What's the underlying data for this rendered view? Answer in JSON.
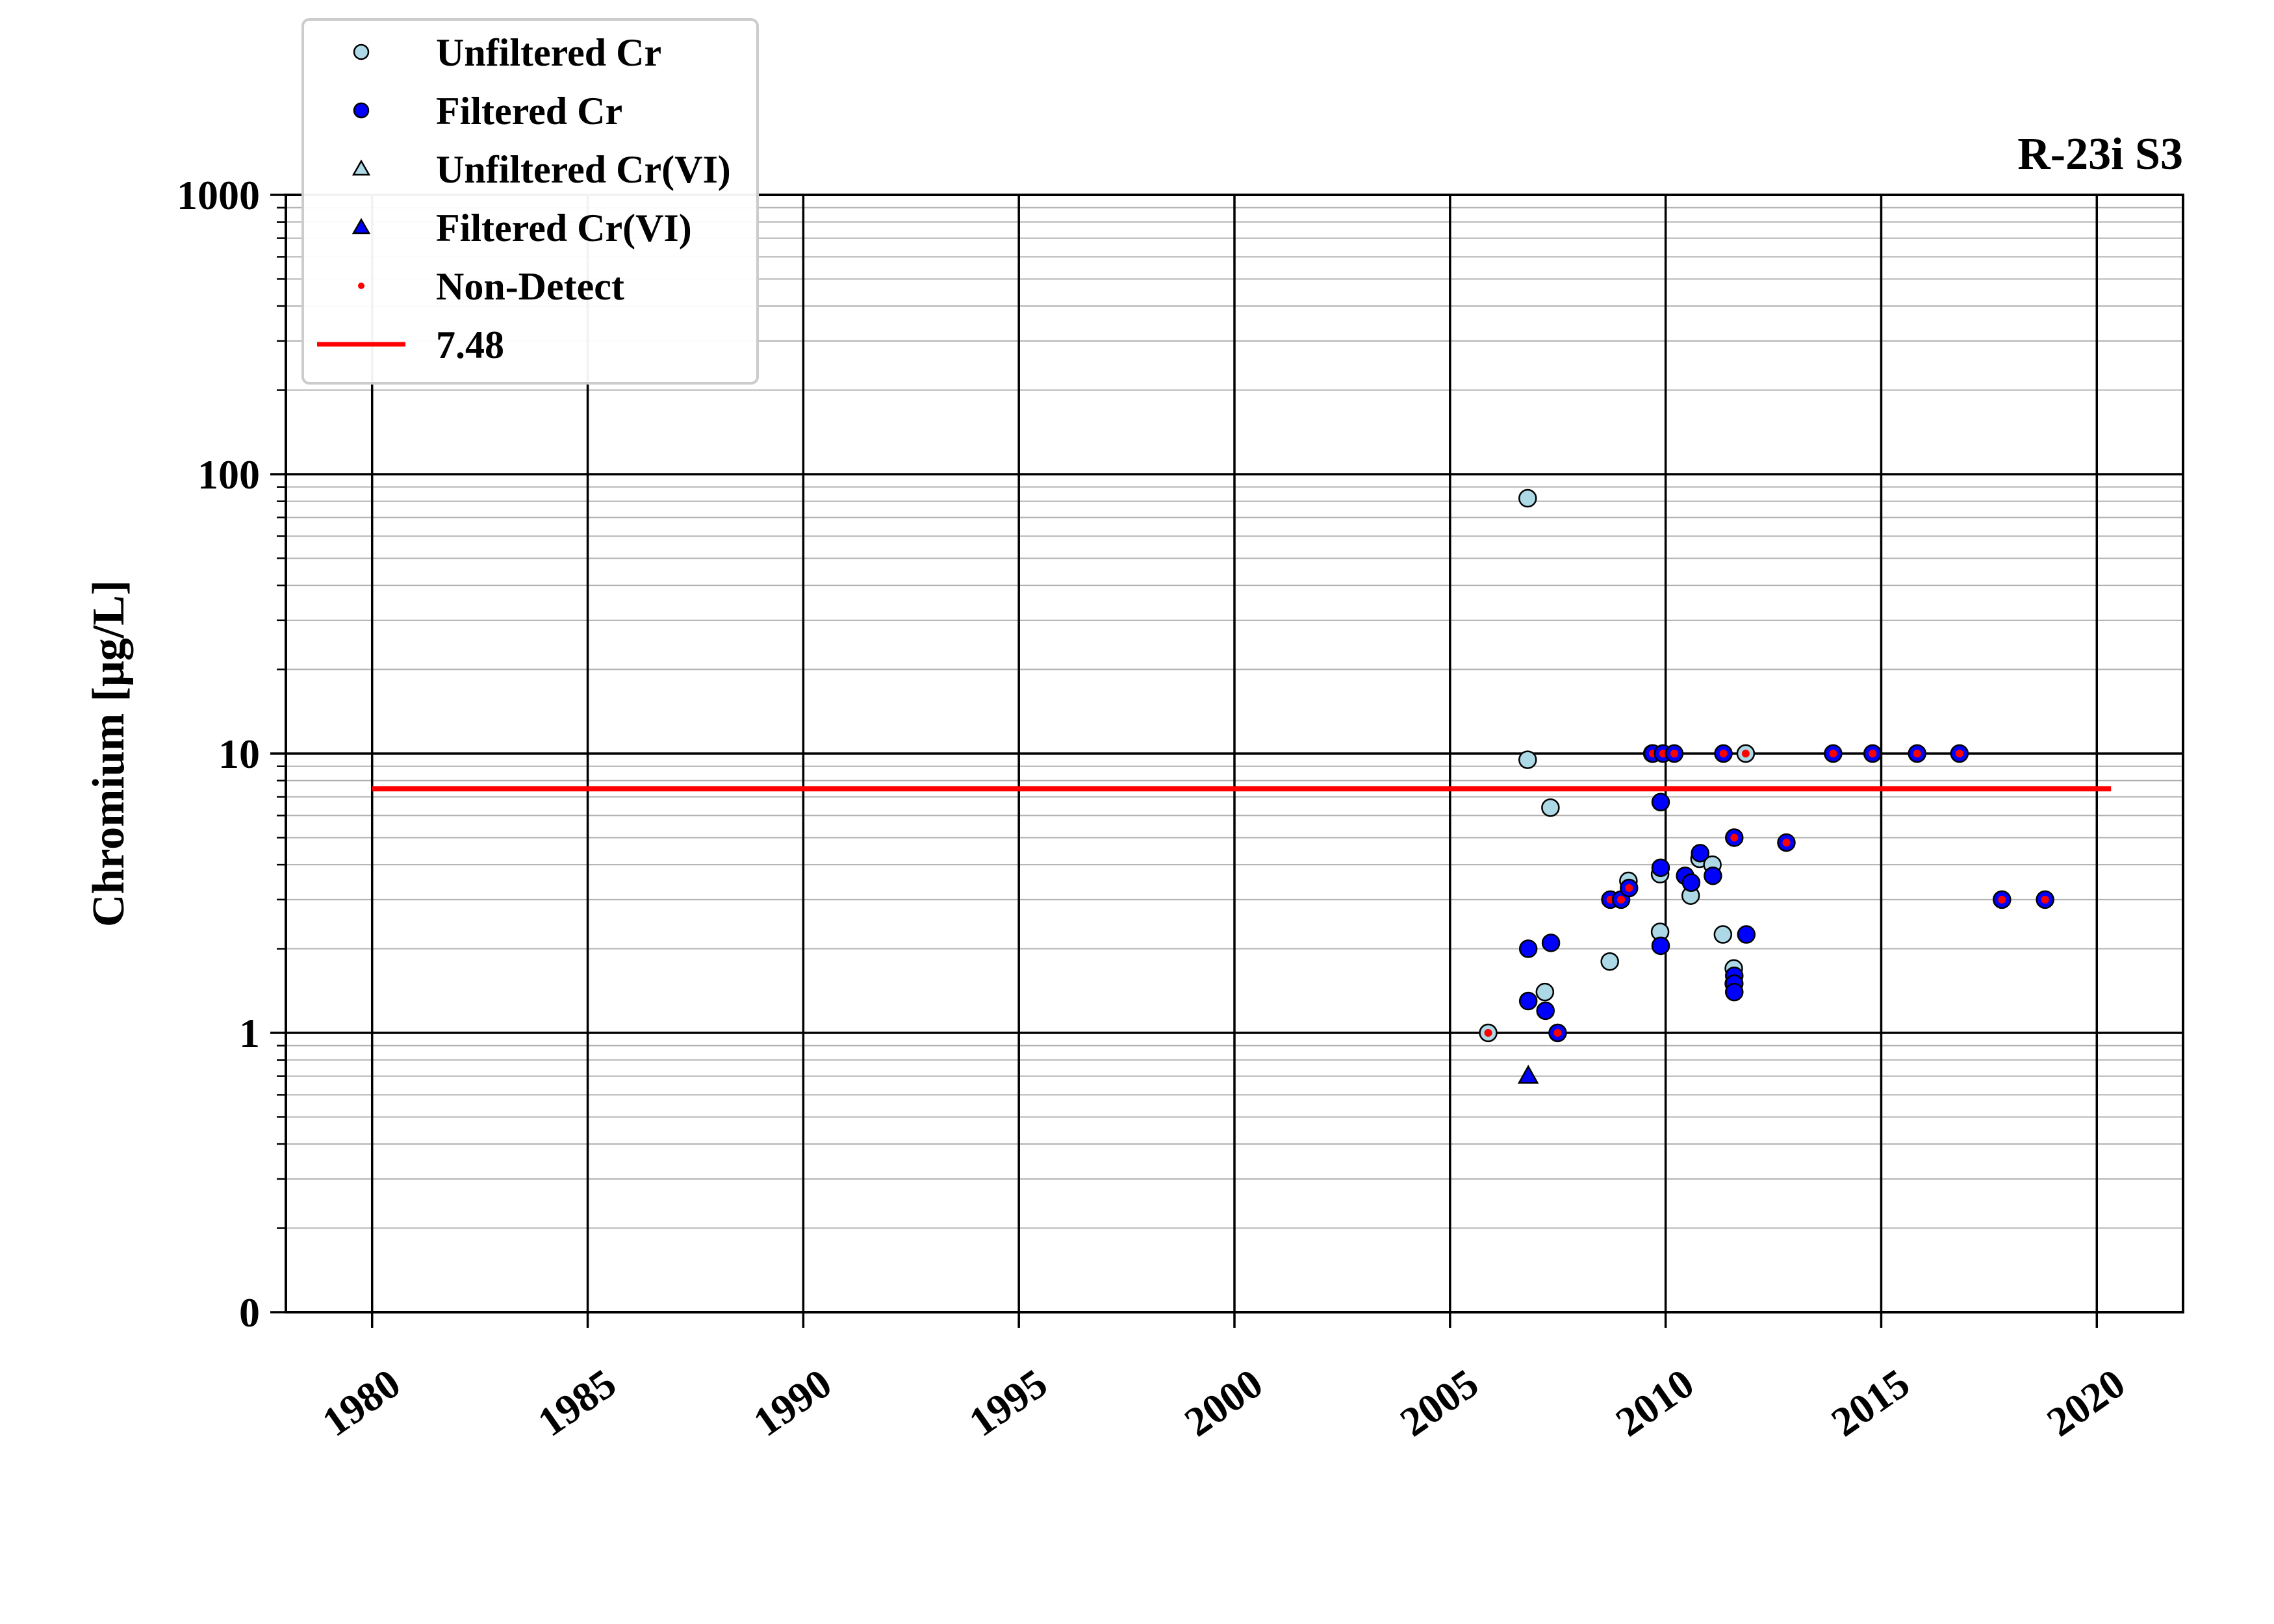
{
  "chart_data": {
    "type": "scatter",
    "title": "R-23i S3",
    "ylabel": "Chromium [μg/L]",
    "xlabel": "",
    "y_scale": "log",
    "ylim": [
      0.1,
      1000
    ],
    "xlim": [
      "1978-01-01",
      "2022-01-01"
    ],
    "x_ticks": [
      "1980",
      "1985",
      "1990",
      "1995",
      "2000",
      "2005",
      "2010",
      "2015",
      "2020"
    ],
    "y_ticks": [
      {
        "value": 0.1,
        "label": "0"
      },
      {
        "value": 1,
        "label": "1"
      },
      {
        "value": 10,
        "label": "10"
      },
      {
        "value": 100,
        "label": "100"
      },
      {
        "value": 1000,
        "label": "1000"
      }
    ],
    "grid": true,
    "legend_position": "top-left",
    "legend": [
      {
        "key": "unfiltered_cr",
        "label": "Unfiltered Cr",
        "marker": "circle",
        "color": "#add8e6"
      },
      {
        "key": "filtered_cr",
        "label": "Filtered Cr",
        "marker": "circle",
        "color": "#0000ff"
      },
      {
        "key": "unfiltered_crvi",
        "label": "Unfiltered Cr(VI)",
        "marker": "triangle",
        "color": "#add8e6"
      },
      {
        "key": "filtered_crvi",
        "label": "Filtered Cr(VI)",
        "marker": "triangle",
        "color": "#0000ff"
      },
      {
        "key": "non_detect",
        "label": "Non-Detect",
        "marker": "dot",
        "color": "#ff0000"
      },
      {
        "key": "threshold",
        "label": "7.48",
        "marker": "line",
        "color": "#ff0000"
      }
    ],
    "threshold": {
      "value": 7.48,
      "x_start": "1980-01-01",
      "x_end": "2020-05-01",
      "color": "#ff0000"
    },
    "series": [
      {
        "name": "Unfiltered Cr",
        "marker": "circle",
        "color": "#add8e6",
        "points": [
          {
            "x": "2005-11-20",
            "y": 1.0,
            "nd": true
          },
          {
            "x": "2006-10-20",
            "y": 82
          },
          {
            "x": "2006-10-20",
            "y": 9.5
          },
          {
            "x": "2007-03-15",
            "y": 1.4
          },
          {
            "x": "2007-05-01",
            "y": 6.4
          },
          {
            "x": "2008-09-15",
            "y": 1.8
          },
          {
            "x": "2009-02-20",
            "y": 3.5
          },
          {
            "x": "2009-09-10",
            "y": 10,
            "nd": true
          },
          {
            "x": "2009-11-15",
            "y": 3.7
          },
          {
            "x": "2009-11-15",
            "y": 2.3
          },
          {
            "x": "2010-08-01",
            "y": 3.1
          },
          {
            "x": "2010-10-15",
            "y": 4.2
          },
          {
            "x": "2011-02-01",
            "y": 4.0
          },
          {
            "x": "2011-05-01",
            "y": 2.25
          },
          {
            "x": "2011-08-01",
            "y": 1.7
          },
          {
            "x": "2011-08-01",
            "y": 1.5
          },
          {
            "x": "2011-11-10",
            "y": 10,
            "nd": true
          }
        ]
      },
      {
        "name": "Filtered Cr",
        "marker": "circle",
        "color": "#0000ff",
        "points": [
          {
            "x": "2006-10-25",
            "y": 2.0
          },
          {
            "x": "2006-10-25",
            "y": 1.3
          },
          {
            "x": "2007-03-20",
            "y": 1.2
          },
          {
            "x": "2007-05-05",
            "y": 2.1
          },
          {
            "x": "2007-07-01",
            "y": 1.0,
            "nd": true
          },
          {
            "x": "2008-09-20",
            "y": 3.0,
            "nd": true
          },
          {
            "x": "2008-12-20",
            "y": 3.0,
            "nd": true
          },
          {
            "x": "2009-02-25",
            "y": 3.3,
            "nd": true
          },
          {
            "x": "2009-09-15",
            "y": 10,
            "nd": true
          },
          {
            "x": "2009-12-10",
            "y": 10,
            "nd": true
          },
          {
            "x": "2009-11-20",
            "y": 6.7
          },
          {
            "x": "2009-11-20",
            "y": 3.9
          },
          {
            "x": "2009-11-20",
            "y": 2.05
          },
          {
            "x": "2010-03-15",
            "y": 10,
            "nd": true
          },
          {
            "x": "2010-06-15",
            "y": 3.65
          },
          {
            "x": "2010-08-05",
            "y": 3.45
          },
          {
            "x": "2010-10-20",
            "y": 4.4
          },
          {
            "x": "2011-02-05",
            "y": 3.65
          },
          {
            "x": "2011-05-05",
            "y": 10,
            "nd": true
          },
          {
            "x": "2011-08-05",
            "y": 5.0,
            "nd": true
          },
          {
            "x": "2011-08-05",
            "y": 1.6
          },
          {
            "x": "2011-08-05",
            "y": 1.5
          },
          {
            "x": "2011-08-05",
            "y": 1.4
          },
          {
            "x": "2011-11-15",
            "y": 2.25
          },
          {
            "x": "2012-10-20",
            "y": 4.8,
            "nd": true
          },
          {
            "x": "2013-11-20",
            "y": 10,
            "nd": true
          },
          {
            "x": "2014-10-20",
            "y": 10,
            "nd": true
          },
          {
            "x": "2015-11-01",
            "y": 10,
            "nd": true
          },
          {
            "x": "2016-10-25",
            "y": 10,
            "nd": true
          },
          {
            "x": "2017-10-20",
            "y": 3.0,
            "nd": true
          },
          {
            "x": "2018-10-20",
            "y": 3.0,
            "nd": true
          }
        ]
      },
      {
        "name": "Unfiltered Cr(VI)",
        "marker": "triangle",
        "color": "#add8e6",
        "points": []
      },
      {
        "name": "Filtered Cr(VI)",
        "marker": "triangle",
        "color": "#0000ff",
        "points": [
          {
            "x": "2006-10-25",
            "y": 0.7
          }
        ]
      }
    ]
  }
}
